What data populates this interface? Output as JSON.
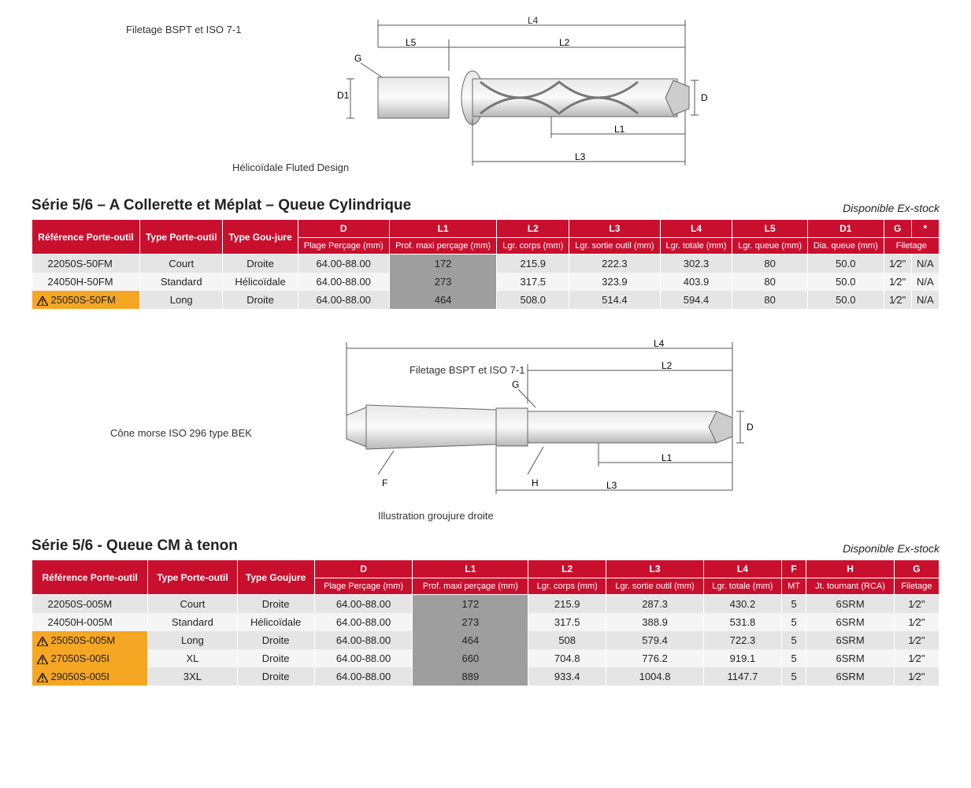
{
  "colors": {
    "header": "#c8102e",
    "warn": "#f5a623",
    "row_odd": "#e5e5e5",
    "row_even": "#f5f5f5",
    "hl": "#9e9e9e"
  },
  "diagram1": {
    "thread_label": "Filetage BSPT et ISO 7-1",
    "design_label": "Hélicoïdale Fluted Design",
    "dims": [
      "G",
      "D1",
      "D",
      "L1",
      "L2",
      "L3",
      "L4",
      "L5"
    ]
  },
  "table1": {
    "title": "Série 5/6 – A Collerette et Méplat – Queue Cylindrique",
    "availability": "Disponible Ex-stock",
    "columns_top": [
      "Référence Porte-outil",
      "Type Porte-outil",
      "Type Gou-jure",
      "D",
      "L1",
      "L2",
      "L3",
      "L4",
      "L5",
      "D1",
      "G",
      "*"
    ],
    "columns_sub": [
      "",
      "",
      "",
      "Plage Perçage (mm)",
      "Prof. maxi perçage (mm)",
      "Lgr. corps (mm)",
      "Lgr. sortie outil (mm)",
      "Lgr. totale (mm)",
      "Lgr. queue (mm)",
      "Dia. queue (mm)",
      "Filetage",
      ""
    ],
    "rows": [
      {
        "warn": false,
        "ref": "22050S-50FM",
        "type": "Court",
        "goujure": "Droite",
        "d": "64.00-88.00",
        "l1": "172",
        "l2": "215.9",
        "l3": "222.3",
        "l4": "302.3",
        "l5": "80",
        "d1": "50.0",
        "g": "1⁄2\"",
        "star": "N/A"
      },
      {
        "warn": false,
        "ref": "24050H-50FM",
        "type": "Standard",
        "goujure": "Hélicoïdale",
        "d": "64.00-88.00",
        "l1": "273",
        "l2": "317.5",
        "l3": "323.9",
        "l4": "403.9",
        "l5": "80",
        "d1": "50.0",
        "g": "1⁄2\"",
        "star": "N/A"
      },
      {
        "warn": true,
        "ref": "25050S-50FM",
        "type": "Long",
        "goujure": "Droite",
        "d": "64.00-88.00",
        "l1": "464",
        "l2": "508.0",
        "l3": "514.4",
        "l4": "594.4",
        "l5": "80",
        "d1": "50.0",
        "g": "1⁄2\"",
        "star": "N/A"
      }
    ]
  },
  "diagram2": {
    "cone_label": "Cône morse ISO 296 type BEK",
    "thread_label": "Filetage BSPT et ISO 7-1",
    "illustration_label": "Illustration groujure droite",
    "dims": [
      "G",
      "D",
      "F",
      "H",
      "L1",
      "L2",
      "L3",
      "L4"
    ]
  },
  "table2": {
    "title": "Série 5/6 - Queue CM à tenon",
    "availability": "Disponible Ex-stock",
    "columns_top": [
      "Référence Porte-outil",
      "Type Porte-outil",
      "Type Goujure",
      "D",
      "L1",
      "L2",
      "L3",
      "L4",
      "F",
      "H",
      "G"
    ],
    "columns_sub": [
      "",
      "",
      "",
      "Plage Perçage (mm)",
      "Prof. maxi perçage (mm)",
      "Lgr. corps (mm)",
      "Lgr. sortie outil (mm)",
      "Lgr. totale (mm)",
      "MT",
      "Jt. tournant (RCA)",
      "Filetage"
    ],
    "rows": [
      {
        "warn": false,
        "ref": "22050S-005M",
        "type": "Court",
        "goujure": "Droite",
        "d": "64.00-88.00",
        "l1": "172",
        "l2": "215.9",
        "l3": "287.3",
        "l4": "430.2",
        "f": "5",
        "h": "6SRM",
        "g": "1⁄2\""
      },
      {
        "warn": false,
        "ref": "24050H-005M",
        "type": "Standard",
        "goujure": "Hélicoïdale",
        "d": "64.00-88.00",
        "l1": "273",
        "l2": "317.5",
        "l3": "388.9",
        "l4": "531.8",
        "f": "5",
        "h": "6SRM",
        "g": "1⁄2\""
      },
      {
        "warn": true,
        "ref": "25050S-005M",
        "type": "Long",
        "goujure": "Droite",
        "d": "64.00-88.00",
        "l1": "464",
        "l2": "508",
        "l3": "579.4",
        "l4": "722.3",
        "f": "5",
        "h": "6SRM",
        "g": "1⁄2\""
      },
      {
        "warn": true,
        "ref": "27050S-005I",
        "type": "XL",
        "goujure": "Droite",
        "d": "64.00-88.00",
        "l1": "660",
        "l2": "704.8",
        "l3": "776.2",
        "l4": "919.1",
        "f": "5",
        "h": "6SRM",
        "g": "1⁄2\""
      },
      {
        "warn": true,
        "ref": "29050S-005I",
        "type": "3XL",
        "goujure": "Droite",
        "d": "64.00-88.00",
        "l1": "889",
        "l2": "933.4",
        "l3": "1004.8",
        "l4": "1147.7",
        "f": "5",
        "h": "6SRM",
        "g": "1⁄2\""
      }
    ]
  }
}
